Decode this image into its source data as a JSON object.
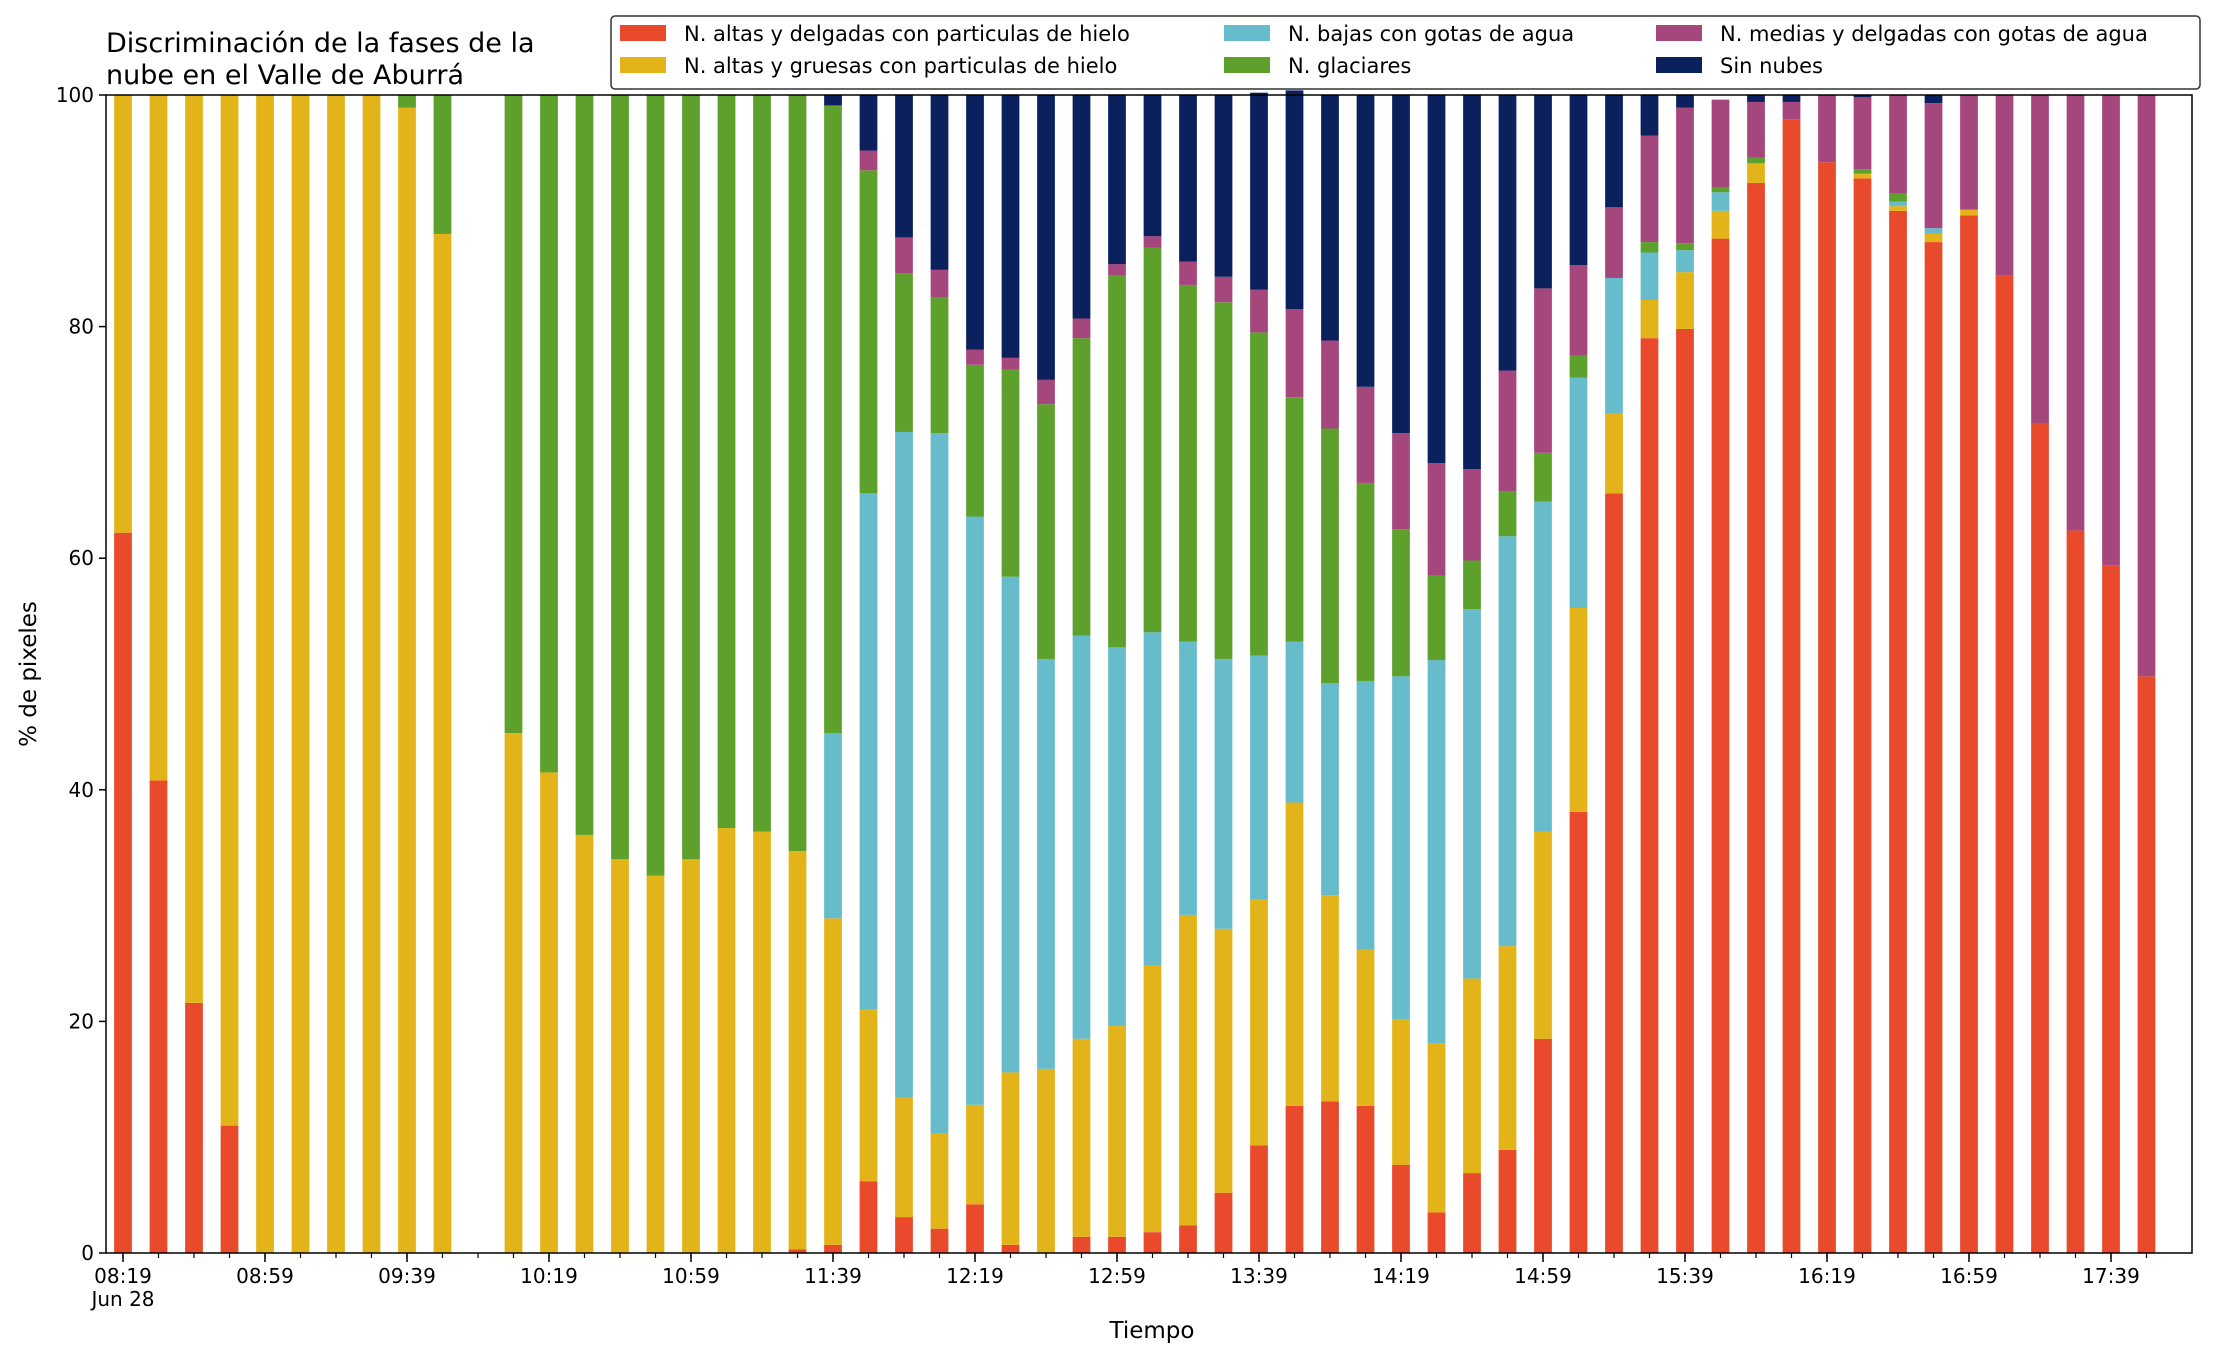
{
  "chart_data": {
    "type": "bar",
    "stacked": true,
    "title": "Discriminación de la fases de la\nnube en el Valle de Aburrá",
    "xlabel": "Tiempo",
    "ylabel": "% de pixeles",
    "ylim": [
      0,
      100
    ],
    "yticks": [
      0,
      20,
      40,
      60,
      80,
      100
    ],
    "grid": false,
    "legend_position": "top-right",
    "xtick_labels": [
      "08:19",
      "08:59",
      "09:39",
      "10:19",
      "10:59",
      "11:39",
      "12:19",
      "12:59",
      "13:39",
      "14:19",
      "14:59",
      "15:39",
      "16:19",
      "16:59",
      "17:39"
    ],
    "xtick_sublabel": "Jun 28",
    "categories": [
      "08:19",
      "08:29",
      "08:39",
      "08:49",
      "08:59",
      "09:09",
      "09:19",
      "09:29",
      "09:39",
      "09:49",
      "09:59",
      "10:09",
      "10:19",
      "10:29",
      "10:39",
      "10:49",
      "10:59",
      "11:09",
      "11:19",
      "11:29",
      "11:39",
      "11:49",
      "11:59",
      "12:09",
      "12:19",
      "12:29",
      "12:39",
      "12:49",
      "12:59",
      "13:09",
      "13:19",
      "13:29",
      "13:39",
      "13:49",
      "13:59",
      "14:09",
      "14:19",
      "14:29",
      "14:39",
      "14:49",
      "14:59",
      "15:09",
      "15:19",
      "15:29",
      "15:39",
      "15:49",
      "15:59",
      "16:09",
      "16:19",
      "16:29",
      "16:39",
      "16:49",
      "16:59",
      "17:09",
      "17:19",
      "17:29",
      "17:39",
      "17:49"
    ],
    "series": [
      {
        "name": "N. altas y delgadas con particulas de hielo",
        "color": "#ea4a2c",
        "values": [
          62.2,
          40.8,
          21.6,
          11.0,
          0,
          0,
          0,
          0,
          0,
          0,
          null,
          0,
          0,
          0,
          0,
          0,
          0,
          0,
          0,
          0.3,
          0.7,
          6.2,
          3.1,
          2.1,
          4.2,
          0.7,
          0,
          1.4,
          1.4,
          1.8,
          2.4,
          5.2,
          9.3,
          12.7,
          13.1,
          12.7,
          7.6,
          3.5,
          6.9,
          8.9,
          18.5,
          38.1,
          65.6,
          79.0,
          79.8,
          87.6,
          92.4,
          97.9,
          94.2,
          92.8,
          90.0,
          87.3,
          89.6,
          84.4,
          71.6,
          62.4,
          59.4,
          49.8
        ]
      },
      {
        "name": "N. altas y gruesas con particulas de hielo",
        "color": "#e3b41a",
        "values": [
          37.8,
          59.2,
          78.4,
          89.0,
          100,
          100,
          100,
          100,
          98.9,
          88.0,
          null,
          44.9,
          41.5,
          36.1,
          34.0,
          32.6,
          34.0,
          36.7,
          36.4,
          34.4,
          28.2,
          14.8,
          10.3,
          8.2,
          8.6,
          14.9,
          15.9,
          17.1,
          18.2,
          23.0,
          26.8,
          22.8,
          21.2,
          26.2,
          17.8,
          13.5,
          12.6,
          14.6,
          16.8,
          17.6,
          17.9,
          17.6,
          6.9,
          3.3,
          4.9,
          2.4,
          1.7,
          0,
          0,
          0.4,
          0.4,
          0.7,
          0.5,
          0,
          0,
          0,
          0,
          0
        ]
      },
      {
        "name": "N. bajas con gotas de agua",
        "color": "#66bccb",
        "values": [
          0,
          0,
          0,
          0,
          0,
          0,
          0,
          0,
          0,
          0,
          null,
          0,
          0,
          0,
          0,
          0,
          0,
          0,
          0,
          0,
          16.0,
          44.6,
          57.5,
          60.5,
          50.8,
          42.8,
          35.4,
          34.8,
          32.7,
          28.8,
          23.6,
          23.3,
          21.1,
          13.9,
          18.3,
          23.2,
          29.6,
          33.1,
          31.9,
          35.4,
          28.5,
          19.9,
          11.7,
          4.1,
          1.9,
          1.6,
          0,
          0,
          0,
          0,
          0.4,
          0.5,
          0,
          0,
          0,
          0,
          0,
          0
        ]
      },
      {
        "name": "N. glaciares",
        "color": "#5ea02c",
        "values": [
          0,
          0,
          0,
          0,
          0,
          0,
          0,
          0,
          1.1,
          12.0,
          null,
          55.1,
          58.5,
          63.9,
          66.0,
          67.4,
          66.0,
          63.3,
          63.6,
          65.3,
          54.2,
          27.9,
          13.7,
          11.7,
          13.1,
          17.9,
          22.0,
          25.7,
          32.1,
          33.2,
          30.8,
          30.8,
          27.9,
          21.1,
          22.0,
          17.1,
          12.7,
          7.3,
          4.2,
          3.9,
          4.2,
          1.9,
          0,
          0.9,
          0.6,
          0.4,
          0.5,
          0,
          0,
          0.4,
          0.7,
          0,
          0,
          0,
          0,
          0,
          0,
          0
        ]
      },
      {
        "name": "N. medias y delgadas con gotas de agua",
        "color": "#a5477d",
        "values": [
          0,
          0,
          0,
          0,
          0,
          0,
          0,
          0,
          0,
          0,
          null,
          0,
          0,
          0,
          0,
          0,
          0,
          0,
          0,
          0,
          0,
          1.7,
          3.1,
          2.4,
          1.3,
          1.0,
          2.1,
          1.7,
          1.0,
          1.0,
          2.0,
          2.2,
          3.7,
          7.6,
          7.6,
          8.3,
          8.3,
          9.7,
          7.9,
          10.4,
          14.2,
          7.8,
          6.1,
          9.2,
          11.7,
          7.6,
          4.8,
          1.5,
          5.8,
          6.2,
          8.5,
          10.8,
          9.9,
          15.6,
          28.4,
          37.6,
          40.6,
          50.2
        ]
      },
      {
        "name": "Sin nubes",
        "color": "#0b215e",
        "values": [
          0,
          0,
          0,
          0,
          0,
          0,
          0,
          0,
          0,
          0,
          null,
          0,
          0,
          0,
          0,
          0,
          0,
          0,
          0,
          0,
          0.9,
          4.8,
          12.3,
          15.1,
          22.0,
          22.7,
          24.6,
          19.3,
          14.6,
          12.2,
          14.4,
          15.7,
          17.0,
          18.9,
          21.2,
          25.2,
          29.2,
          31.8,
          32.3,
          23.8,
          16.7,
          14.7,
          9.7,
          3.5,
          1.1,
          0,
          0.6,
          0.6,
          0,
          0.2,
          0,
          0.7,
          0,
          0,
          0,
          0,
          0,
          0
        ]
      }
    ]
  }
}
